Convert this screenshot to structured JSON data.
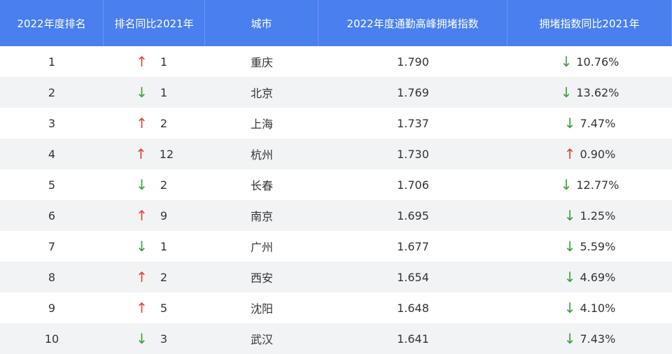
{
  "table": {
    "headers": [
      "2022年度排名",
      "排名同比2021年",
      "城市",
      "2022年度通勤高峰拥堵指数",
      "拥堵指数同比2021年"
    ],
    "rows": [
      [
        "1",
        "↑",
        "1",
        "重庆",
        "1.790",
        "↓",
        "10.76%"
      ],
      [
        "2",
        "↓",
        "1",
        "北京",
        "1.769",
        "↓",
        "13.62%"
      ],
      [
        "3",
        "↑",
        "2",
        "上海",
        "1.737",
        "↓",
        "7.47%"
      ],
      [
        "4",
        "↑",
        "12",
        "杭州",
        "1.730",
        "↑",
        "0.90%"
      ],
      [
        "5",
        "↓",
        "2",
        "长春",
        "1.706",
        "↓",
        "12.77%"
      ],
      [
        "6",
        "↑",
        "9",
        "南京",
        "1.695",
        "↓",
        "1.25%"
      ],
      [
        "7",
        "↓",
        "1",
        "广州",
        "1.677",
        "↓",
        "5.59%"
      ],
      [
        "8",
        "↑",
        "2",
        "西安",
        "1.654",
        "↓",
        "4.69%"
      ],
      [
        "9",
        "↑",
        "5",
        "沈阳",
        "1.648",
        "↓",
        "4.10%"
      ],
      [
        "10",
        "↓",
        "3",
        "武汉",
        "1.641",
        "↓",
        "7.43%"
      ]
    ]
  }
}
